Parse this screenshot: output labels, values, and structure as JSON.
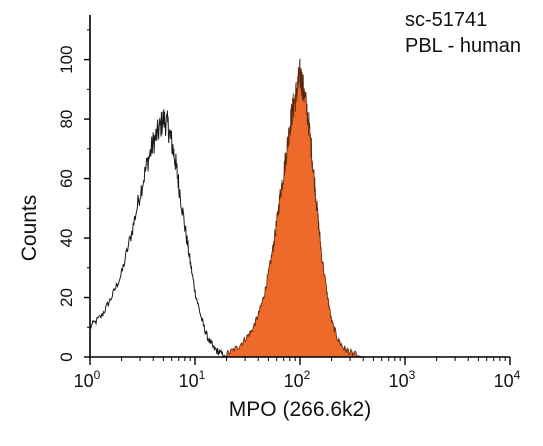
{
  "chart_data": {
    "type": "area",
    "title": "",
    "annotations": [
      "sc-51741",
      "PBL - human"
    ],
    "xlabel": "MPO (266.6k2)",
    "ylabel": "Counts",
    "xscale": "log",
    "xlim": [
      1,
      10000
    ],
    "ylim": [
      0,
      115
    ],
    "x_ticks": [
      {
        "base": "10",
        "exp": "0",
        "value": 1
      },
      {
        "base": "10",
        "exp": "1",
        "value": 10
      },
      {
        "base": "10",
        "exp": "2",
        "value": 100
      },
      {
        "base": "10",
        "exp": "3",
        "value": 1000
      },
      {
        "base": "10",
        "exp": "4",
        "value": 10000
      }
    ],
    "y_ticks": [
      "0",
      "20",
      "40",
      "60",
      "80",
      "100"
    ],
    "y_tick_values": [
      0,
      20,
      40,
      60,
      80,
      100
    ],
    "grid": false,
    "series": [
      {
        "style": "outline",
        "color": "#1a1a1a",
        "x": [
          1.0,
          1.3,
          1.6,
          2.0,
          2.5,
          3.0,
          3.5,
          4.0,
          4.5,
          5.0,
          5.5,
          6.0,
          6.5,
          7.0,
          8.0,
          9.0,
          10.0,
          11.5,
          13.0,
          15.0,
          17.0,
          20.0
        ],
        "values": [
          10,
          14,
          20,
          28,
          42,
          55,
          65,
          72,
          76,
          80,
          78,
          72,
          66,
          58,
          44,
          32,
          22,
          13,
          7,
          3,
          1.5,
          0
        ]
      },
      {
        "style": "filled",
        "color": "#ee6a2a",
        "x": [
          20,
          25,
          30,
          35,
          40,
          45,
          50,
          55,
          60,
          65,
          70,
          75,
          80,
          85,
          90,
          95,
          100,
          105,
          110,
          120,
          130,
          140,
          150,
          160,
          180,
          200,
          230,
          260,
          300,
          350,
          400
        ],
        "values": [
          1,
          3,
          6,
          9,
          14,
          20,
          28,
          36,
          45,
          55,
          62,
          70,
          78,
          83,
          87,
          91,
          95,
          92,
          88,
          80,
          68,
          56,
          45,
          35,
          22,
          12,
          6,
          3,
          1.5,
          0.5,
          0
        ]
      }
    ]
  }
}
